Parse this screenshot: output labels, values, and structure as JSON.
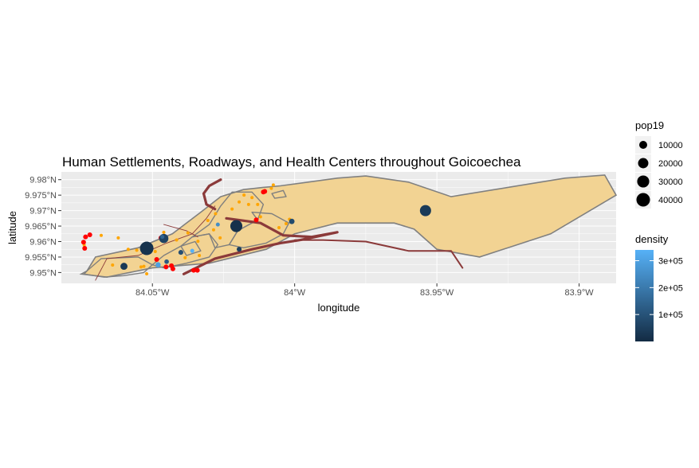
{
  "chart_data": {
    "type": "map",
    "title": "Human Settlements, Roadways, and Health Centers throughout Goicoechea",
    "xlabel": "longitude",
    "ylabel": "latitude",
    "xlim": [
      -84.082,
      -83.887
    ],
    "ylim": [
      9.9465,
      9.9825
    ],
    "x_ticks": [
      {
        "value": -84.05,
        "label": "84.05°W"
      },
      {
        "value": -84.0,
        "label": "84°W"
      },
      {
        "value": -83.95,
        "label": "83.95°W"
      },
      {
        "value": -83.9,
        "label": "83.9°W"
      }
    ],
    "y_ticks": [
      {
        "value": 9.95,
        "label": "9.95°N"
      },
      {
        "value": 9.955,
        "label": "9.955°N"
      },
      {
        "value": 9.96,
        "label": "9.96°N"
      },
      {
        "value": 9.965,
        "label": "9.965°N"
      },
      {
        "value": 9.97,
        "label": "9.97°N"
      },
      {
        "value": 9.975,
        "label": "9.975°N"
      },
      {
        "value": 9.98,
        "label": "9.98°N"
      }
    ],
    "grid": true,
    "boundary": [
      [
        -84.073,
        9.9505
      ],
      [
        -84.07,
        9.955
      ],
      [
        -84.055,
        9.958
      ],
      [
        -84.043,
        9.9625
      ],
      [
        -84.033,
        9.9695
      ],
      [
        -84.026,
        9.9745
      ],
      [
        -84.018,
        9.9768
      ],
      [
        -84.011,
        9.9775
      ],
      [
        -84.005,
        9.978
      ],
      [
        -83.985,
        9.9805
      ],
      [
        -83.975,
        9.9812
      ],
      [
        -83.96,
        9.9792
      ],
      [
        -83.945,
        9.9745
      ],
      [
        -83.905,
        9.9805
      ],
      [
        -83.891,
        9.9815
      ],
      [
        -83.887,
        9.975
      ],
      [
        -83.91,
        9.9625
      ],
      [
        -83.935,
        9.955
      ],
      [
        -83.95,
        9.9575
      ],
      [
        -83.958,
        9.964
      ],
      [
        -83.965,
        9.966
      ],
      [
        -83.985,
        9.966
      ],
      [
        -84.0,
        9.9625
      ],
      [
        -84.01,
        9.9575
      ],
      [
        -84.03,
        9.953
      ],
      [
        -84.05,
        9.9515
      ],
      [
        -84.066,
        9.9485
      ],
      [
        -84.075,
        9.9495
      ]
    ],
    "districts": [
      [
        [
          -84.073,
          9.9505
        ],
        [
          -84.068,
          9.9545
        ],
        [
          -84.055,
          9.955
        ],
        [
          -84.05,
          9.9525
        ],
        [
          -84.053,
          9.95
        ],
        [
          -84.06,
          9.949
        ],
        [
          -84.067,
          9.9485
        ],
        [
          -84.074,
          9.9495
        ]
      ],
      [
        [
          -84.05,
          9.9525
        ],
        [
          -84.046,
          9.9555
        ],
        [
          -84.04,
          9.9585
        ],
        [
          -84.036,
          9.9615
        ],
        [
          -84.03,
          9.9625
        ],
        [
          -84.027,
          9.959
        ],
        [
          -84.03,
          9.955
        ],
        [
          -84.038,
          9.953
        ],
        [
          -84.046,
          9.9515
        ]
      ],
      [
        [
          -84.036,
          9.9615
        ],
        [
          -84.03,
          9.9655
        ],
        [
          -84.026,
          9.9715
        ],
        [
          -84.022,
          9.976
        ],
        [
          -84.015,
          9.976
        ],
        [
          -84.011,
          9.972
        ],
        [
          -84.013,
          9.967
        ],
        [
          -84.02,
          9.9635
        ],
        [
          -84.023,
          9.959
        ],
        [
          -84.028,
          9.958
        ],
        [
          -84.03,
          9.9625
        ]
      ],
      [
        [
          -84.015,
          9.9695
        ],
        [
          -84.008,
          9.969
        ],
        [
          -84.002,
          9.966
        ],
        [
          -84.004,
          9.9625
        ],
        [
          -84.01,
          9.9595
        ],
        [
          -84.018,
          9.958
        ],
        [
          -84.023,
          9.959
        ],
        [
          -84.02,
          9.9635
        ],
        [
          -84.013,
          9.967
        ]
      ],
      [
        [
          -84.04,
          9.9585
        ],
        [
          -84.035,
          9.96
        ],
        [
          -84.033,
          9.957
        ],
        [
          -84.038,
          9.9555
        ]
      ],
      [
        [
          -84.008,
          9.9755
        ],
        [
          -84.004,
          9.9765
        ],
        [
          -84.003,
          9.9745
        ],
        [
          -84.007,
          9.974
        ]
      ]
    ],
    "roads": [
      {
        "weight": "major",
        "points": [
          [
            -84.039,
            9.9495
          ],
          [
            -84.028,
            9.9545
          ],
          [
            -84.015,
            9.9575
          ],
          [
            -84.005,
            9.9595
          ],
          [
            -83.998,
            9.9605
          ],
          [
            -83.985,
            9.963
          ],
          [
            -83.994,
            9.9615
          ],
          [
            -84.004,
            9.962
          ],
          [
            -84.012,
            9.966
          ],
          [
            -84.024,
            9.9675
          ]
        ]
      },
      {
        "weight": "major",
        "points": [
          [
            -84.028,
            9.9705
          ],
          [
            -84.031,
            9.972
          ],
          [
            -84.032,
            9.9755
          ],
          [
            -84.03,
            9.978
          ],
          [
            -84.026,
            9.98
          ]
        ]
      },
      {
        "weight": "medium",
        "points": [
          [
            -84.0,
            9.9605
          ],
          [
            -83.99,
            9.9605
          ],
          [
            -83.975,
            9.96
          ],
          [
            -83.96,
            9.957
          ],
          [
            -83.945,
            9.957
          ],
          [
            -83.941,
            9.9515
          ]
        ]
      },
      {
        "weight": "minor",
        "points": [
          [
            -84.07,
            9.9475
          ],
          [
            -84.066,
            9.9545
          ],
          [
            -84.055,
            9.9555
          ],
          [
            -84.045,
            9.9595
          ],
          [
            -84.036,
            9.9625
          ],
          [
            -84.031,
            9.9675
          ],
          [
            -84.028,
            9.9715
          ]
        ]
      },
      {
        "weight": "minor",
        "points": [
          [
            -84.046,
            9.9655
          ],
          [
            -84.038,
            9.9635
          ],
          [
            -84.034,
            9.9615
          ]
        ]
      }
    ],
    "settlements": [
      {
        "lon": -84.052,
        "lat": 9.9578,
        "pop19": 40000,
        "density": 20000
      },
      {
        "lon": -84.0205,
        "lat": 9.965,
        "pop19": 30000,
        "density": 15000
      },
      {
        "lon": -83.954,
        "lat": 9.97,
        "pop19": 25000,
        "density": 40000
      },
      {
        "lon": -84.046,
        "lat": 9.961,
        "pop19": 15000,
        "density": 60000
      },
      {
        "lon": -84.06,
        "lat": 9.952,
        "pop19": 7000,
        "density": 35000
      },
      {
        "lon": -84.001,
        "lat": 9.9665,
        "pop19": 3000,
        "density": 80000
      },
      {
        "lon": -84.048,
        "lat": 9.9525,
        "pop19": 2500,
        "density": 300000
      },
      {
        "lon": -84.0195,
        "lat": 9.9575,
        "pop19": 2000,
        "density": 50000
      },
      {
        "lon": -84.04,
        "lat": 9.9565,
        "pop19": 2000,
        "density": 90000
      },
      {
        "lon": -84.045,
        "lat": 9.9535,
        "pop19": 1500,
        "density": 120000
      },
      {
        "lon": -84.036,
        "lat": 9.957,
        "pop19": 1000,
        "density": 340000
      },
      {
        "lon": -84.0465,
        "lat": 9.9615,
        "pop19": 800,
        "density": 150000
      },
      {
        "lon": -84.027,
        "lat": 9.9655,
        "pop19": 800,
        "density": 250000
      }
    ],
    "health_centers_red": [
      [
        -84.0735,
        9.9615
      ],
      [
        -84.0742,
        9.9598
      ],
      [
        -84.0738,
        9.9578
      ],
      [
        -84.072,
        9.9622
      ],
      [
        -84.0485,
        9.9542
      ],
      [
        -84.0452,
        9.9518
      ],
      [
        -84.0433,
        9.9522
      ],
      [
        -84.0428,
        9.9512
      ],
      [
        -84.0355,
        9.9507
      ],
      [
        -84.0342,
        9.9507
      ],
      [
        -84.0105,
        9.9762
      ],
      [
        -84.011,
        9.976
      ],
      [
        -84.0135,
        9.967
      ],
      [
        -84.047,
        9.9612
      ]
    ],
    "health_centers_orange": [
      [
        -84.074,
        9.9589
      ],
      [
        -84.068,
        9.962
      ],
      [
        -84.062,
        9.9612
      ],
      [
        -84.0555,
        9.9572
      ],
      [
        -84.054,
        9.9518
      ],
      [
        -84.052,
        9.9496
      ],
      [
        -84.0585,
        9.9575
      ],
      [
        -84.064,
        9.9524
      ],
      [
        -84.049,
        9.9568
      ],
      [
        -84.046,
        9.963
      ],
      [
        -84.0415,
        9.9605
      ],
      [
        -84.0385,
        9.9548
      ],
      [
        -84.0375,
        9.9628
      ],
      [
        -84.034,
        9.9601
      ],
      [
        -84.0305,
        9.9668
      ],
      [
        -84.0285,
        9.9638
      ],
      [
        -84.0262,
        9.9612
      ],
      [
        -84.0278,
        9.969
      ],
      [
        -84.022,
        9.9705
      ],
      [
        -84.0195,
        9.9728
      ],
      [
        -84.0162,
        9.972
      ],
      [
        -84.015,
        9.9742
      ],
      [
        -84.0178,
        9.975
      ],
      [
        -84.012,
        9.968
      ],
      [
        -84.0082,
        9.9772
      ],
      [
        -84.0075,
        9.9783
      ],
      [
        -84.013,
        9.972
      ],
      [
        -84.0335,
        9.9555
      ],
      [
        -84.0055,
        9.9645
      ],
      [
        -84.0018,
        9.9672
      ],
      [
        -84.003,
        9.9658
      ],
      [
        -84.053,
        9.952
      ]
    ],
    "legend_size": {
      "title": "pop19",
      "entries": [
        {
          "value": 10000,
          "label": "10000"
        },
        {
          "value": 20000,
          "label": "20000"
        },
        {
          "value": 30000,
          "label": "30000"
        },
        {
          "value": 40000,
          "label": "40000"
        }
      ]
    },
    "legend_color": {
      "title": "density",
      "range": [
        0,
        340000
      ],
      "ticks": [
        {
          "value": 100000,
          "label": "1e+05"
        },
        {
          "value": 200000,
          "label": "2e+05"
        },
        {
          "value": 300000,
          "label": "3e+05"
        }
      ],
      "low_color": "#132b43",
      "high_color": "#56b1f7"
    },
    "colors": {
      "panel": "#ebebeb",
      "grid_major": "#ffffff",
      "region_fill": "#f2d393",
      "region_stroke": "#808080",
      "district_stroke": "#7f7f7f",
      "road": "#8b3a3a",
      "health_red": "#ff0000",
      "health_orange": "#ffa500"
    }
  }
}
